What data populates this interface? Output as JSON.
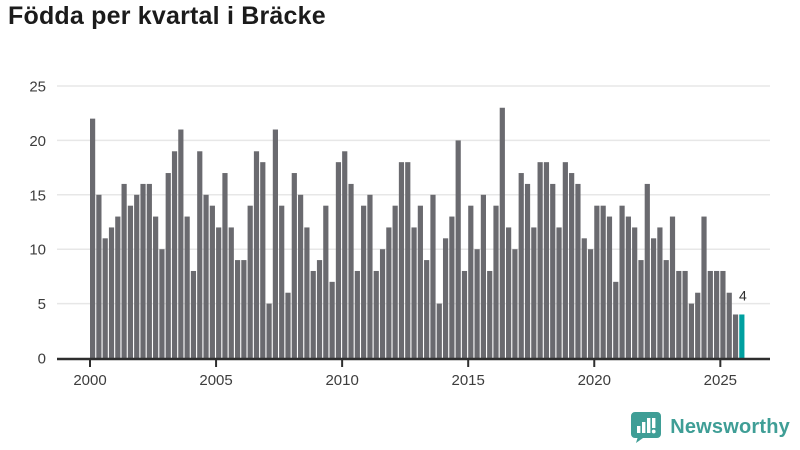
{
  "title": "Födda per kvartal i Bräcke",
  "brand": {
    "name": "Newsworthy",
    "color": "#3f9e96"
  },
  "chart_data": {
    "type": "bar",
    "title": "Födda per kvartal i Bräcke",
    "xlabel": "",
    "ylabel": "",
    "frequency": "quarterly",
    "start_year": 2000,
    "ylim": [
      0,
      25
    ],
    "grid": true,
    "y_ticks": [
      0,
      5,
      10,
      15,
      20,
      25
    ],
    "x_tick_years": [
      2000,
      2005,
      2010,
      2015,
      2020,
      2025
    ],
    "x_tick_labels": [
      "2000",
      "2005",
      "2010",
      "2015",
      "2020",
      "2025"
    ],
    "bar_color": "#6a6a6f",
    "highlight_color": "#00a0a0",
    "grid_color": "#e7e7e7",
    "axis_color": "#2e2e2e",
    "series": [
      {
        "name": "Födda per kvartal",
        "values": [
          22,
          15,
          11,
          12,
          13,
          16,
          14,
          15,
          16,
          16,
          13,
          10,
          17,
          19,
          21,
          13,
          8,
          19,
          15,
          14,
          12,
          17,
          12,
          9,
          9,
          14,
          19,
          18,
          5,
          21,
          14,
          6,
          17,
          15,
          12,
          8,
          9,
          14,
          7,
          18,
          19,
          16,
          8,
          14,
          15,
          8,
          10,
          12,
          14,
          18,
          18,
          12,
          14,
          9,
          15,
          5,
          11,
          13,
          20,
          8,
          14,
          10,
          15,
          8,
          14,
          23,
          12,
          10,
          17,
          16,
          12,
          18,
          18,
          16,
          12,
          18,
          17,
          16,
          11,
          10,
          14,
          14,
          13,
          7,
          14,
          13,
          12,
          9,
          16,
          11,
          12,
          9,
          13,
          8,
          8,
          5,
          6,
          13,
          8,
          8,
          8,
          6,
          4,
          4
        ]
      }
    ],
    "highlight": {
      "index": 103,
      "quarter": "2025 Q4",
      "value": 4,
      "label": "4"
    }
  }
}
